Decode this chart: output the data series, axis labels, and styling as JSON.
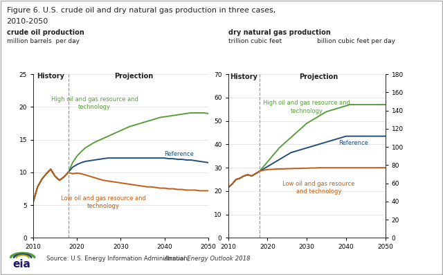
{
  "title_line1": "Figure 6. U.S. crude oil and dry natural gas production in three cases,",
  "title_line2": "2010-2050",
  "source_prefix": "Source: U.S. Energy Information Administration, ",
  "source_italic": "Annual Energy Outlook 2018",
  "oil_label1": "crude oil production",
  "oil_label2": "million barrels  per day",
  "gas_label1": "dry natural gas production",
  "gas_label2_left": "trillion cubic feet",
  "gas_label2_right": "billion cubic feet per day",
  "history_divider": 2018,
  "oil_years_hist": [
    2010,
    2011,
    2012,
    2013,
    2014,
    2015,
    2016,
    2017,
    2018
  ],
  "oil_high_hist": [
    5.5,
    7.8,
    9.0,
    9.8,
    10.5,
    9.4,
    8.8,
    9.3,
    10.0
  ],
  "oil_ref_hist": [
    5.5,
    7.8,
    9.0,
    9.8,
    10.5,
    9.4,
    8.8,
    9.3,
    10.0
  ],
  "oil_low_hist": [
    5.5,
    7.8,
    9.0,
    9.8,
    10.5,
    9.4,
    8.8,
    9.3,
    10.0
  ],
  "oil_years_proj": [
    2018,
    2019,
    2020,
    2021,
    2022,
    2023,
    2024,
    2025,
    2026,
    2027,
    2028,
    2029,
    2030,
    2031,
    2032,
    2033,
    2034,
    2035,
    2036,
    2037,
    2038,
    2039,
    2040,
    2041,
    2042,
    2043,
    2044,
    2045,
    2046,
    2047,
    2048,
    2049,
    2050
  ],
  "oil_high_proj": [
    10.0,
    11.5,
    12.5,
    13.2,
    13.8,
    14.2,
    14.6,
    14.9,
    15.2,
    15.5,
    15.8,
    16.1,
    16.4,
    16.7,
    17.0,
    17.2,
    17.4,
    17.6,
    17.8,
    18.0,
    18.2,
    18.4,
    18.5,
    18.6,
    18.7,
    18.8,
    18.9,
    19.0,
    19.1,
    19.1,
    19.1,
    19.1,
    19.0
  ],
  "oil_ref_proj": [
    10.0,
    10.8,
    11.2,
    11.5,
    11.7,
    11.8,
    11.9,
    12.0,
    12.1,
    12.2,
    12.2,
    12.2,
    12.2,
    12.2,
    12.2,
    12.2,
    12.2,
    12.2,
    12.2,
    12.2,
    12.2,
    12.2,
    12.2,
    12.1,
    12.1,
    12.0,
    12.0,
    11.9,
    11.9,
    11.8,
    11.7,
    11.6,
    11.5
  ],
  "oil_low_proj": [
    10.0,
    9.8,
    9.9,
    9.8,
    9.6,
    9.4,
    9.2,
    9.0,
    8.8,
    8.7,
    8.6,
    8.5,
    8.4,
    8.3,
    8.2,
    8.1,
    8.0,
    7.9,
    7.8,
    7.8,
    7.7,
    7.6,
    7.6,
    7.5,
    7.5,
    7.4,
    7.4,
    7.3,
    7.3,
    7.3,
    7.2,
    7.2,
    7.2
  ],
  "gas_years_hist": [
    2010,
    2011,
    2012,
    2013,
    2014,
    2015,
    2016,
    2017,
    2018
  ],
  "gas_high_hist": [
    21.5,
    23.0,
    25.0,
    25.5,
    26.5,
    27.0,
    26.5,
    27.5,
    28.5
  ],
  "gas_ref_hist": [
    21.5,
    23.0,
    25.0,
    25.5,
    26.5,
    27.0,
    26.5,
    27.5,
    28.5
  ],
  "gas_low_hist": [
    21.5,
    23.0,
    25.0,
    25.5,
    26.5,
    27.0,
    26.5,
    27.5,
    28.5
  ],
  "gas_years_proj": [
    2018,
    2019,
    2020,
    2021,
    2022,
    2023,
    2024,
    2025,
    2026,
    2027,
    2028,
    2029,
    2030,
    2031,
    2032,
    2033,
    2034,
    2035,
    2036,
    2037,
    2038,
    2039,
    2040,
    2041,
    2042,
    2043,
    2044,
    2045,
    2046,
    2047,
    2048,
    2049,
    2050
  ],
  "gas_high_proj": [
    28.5,
    30.5,
    32.5,
    34.5,
    36.5,
    38.5,
    40.0,
    41.5,
    43.0,
    44.5,
    46.0,
    47.5,
    49.0,
    50.0,
    51.0,
    52.0,
    53.0,
    54.0,
    54.5,
    55.0,
    55.5,
    56.0,
    56.5,
    57.0,
    57.0,
    57.0,
    57.0,
    57.0,
    57.0,
    57.0,
    57.0,
    57.0,
    57.0
  ],
  "gas_ref_proj": [
    28.5,
    29.5,
    30.5,
    31.5,
    32.5,
    33.5,
    34.5,
    35.5,
    36.5,
    37.0,
    37.5,
    38.0,
    38.5,
    39.0,
    39.5,
    40.0,
    40.5,
    41.0,
    41.5,
    42.0,
    42.5,
    43.0,
    43.5,
    43.5,
    43.5,
    43.5,
    43.5,
    43.5,
    43.5,
    43.5,
    43.5,
    43.5,
    43.5
  ],
  "gas_low_proj": [
    28.5,
    29.0,
    29.2,
    29.3,
    29.4,
    29.5,
    29.5,
    29.6,
    29.6,
    29.7,
    29.7,
    29.8,
    29.8,
    29.9,
    29.9,
    30.0,
    30.0,
    30.0,
    30.0,
    30.0,
    30.0,
    30.0,
    30.0,
    30.0,
    30.0,
    30.0,
    30.0,
    30.0,
    30.0,
    30.0,
    30.0,
    30.0,
    30.0
  ],
  "color_high": "#5a9e3a",
  "color_ref": "#1f4e79",
  "color_low": "#c55a11",
  "color_divider": "#999999",
  "background": "#ffffff",
  "border_color": "#aaaaaa",
  "oil_ylim": [
    0,
    25
  ],
  "oil_yticks": [
    0,
    5,
    10,
    15,
    20,
    25
  ],
  "gas_ylim": [
    0,
    70
  ],
  "gas_yticks": [
    0,
    10,
    20,
    30,
    40,
    50,
    60,
    70
  ],
  "gas_y2lim": [
    0,
    180
  ],
  "gas_y2ticks": [
    0,
    20,
    40,
    60,
    80,
    100,
    120,
    140,
    160,
    180
  ],
  "xlim": [
    2010,
    2050
  ],
  "xticks": [
    2010,
    2020,
    2030,
    2040,
    2050
  ]
}
